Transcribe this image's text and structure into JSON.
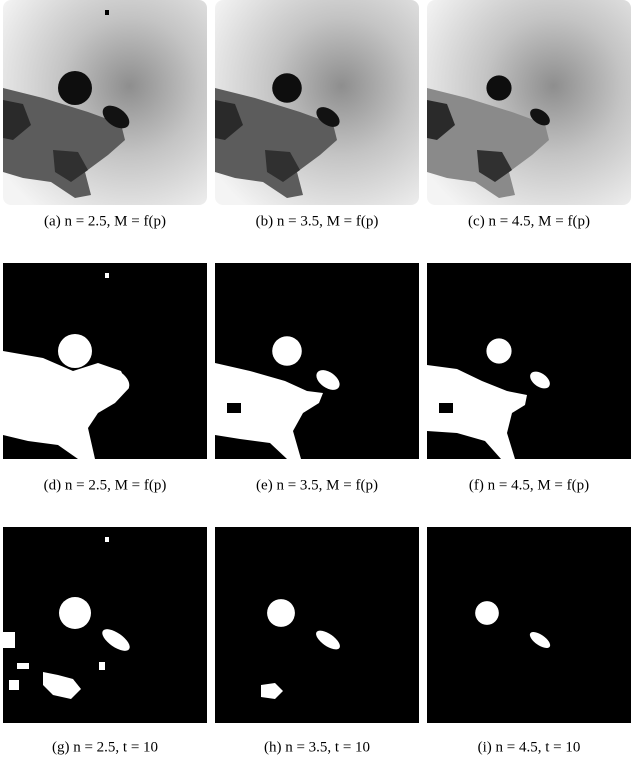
{
  "figure": {
    "subfigures": [
      {
        "caption": "(a) n = 2.5, M = f(p)"
      },
      {
        "caption": "(b) n = 3.5, M = f(p)"
      },
      {
        "caption": "(c) n = 4.5, M = f(p)"
      },
      {
        "caption": "(d) n = 2.5, M = f(p)"
      },
      {
        "caption": "(e) n = 3.5, M = f(p)"
      },
      {
        "caption": "(f) n = 4.5, M = f(p)"
      },
      {
        "caption": "(g) n = 2.5, t = 10"
      },
      {
        "caption": "(h) n = 3.5, t = 10"
      },
      {
        "caption": "(i) n = 4.5, t = 10"
      }
    ]
  }
}
